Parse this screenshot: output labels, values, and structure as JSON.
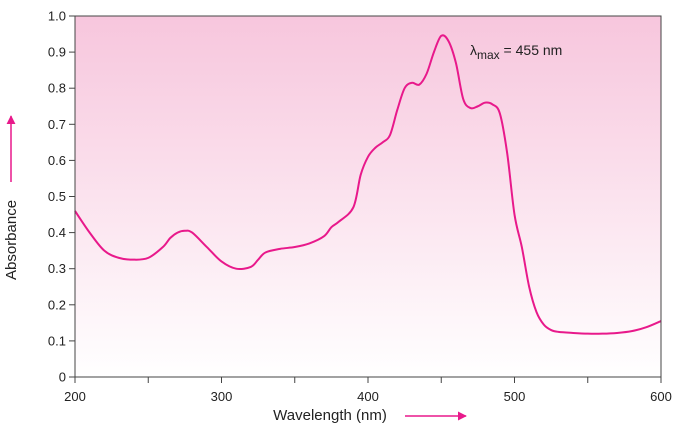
{
  "chart_data": {
    "type": "line",
    "title": "",
    "xlabel": "Wavelength (nm)",
    "ylabel": "Absorbance",
    "xlim": [
      200,
      600
    ],
    "ylim": [
      0,
      1.0
    ],
    "x_ticks": [
      "200",
      "300",
      "400",
      "500",
      "600"
    ],
    "y_ticks": [
      "0",
      "0.1",
      "0.2",
      "0.3",
      "0.4",
      "0.5",
      "0.6",
      "0.7",
      "0.8",
      "0.9",
      "1.0"
    ],
    "grid": false,
    "annotation": {
      "symbol": "λ",
      "subscript": "max",
      "text": " = 455 nm"
    },
    "colors": {
      "line": "#e8198b",
      "background_top": "#f7c6dd",
      "background_bottom": "#ffffff"
    },
    "series": [
      {
        "x": [
          200,
          210,
          220,
          230,
          240,
          250,
          260,
          265,
          270,
          275,
          280,
          290,
          300,
          310,
          320,
          325,
          330,
          340,
          350,
          360,
          370,
          375,
          380,
          390,
          395,
          400,
          405,
          410,
          415,
          420,
          425,
          430,
          435,
          440,
          445,
          450,
          455,
          460,
          465,
          470,
          475,
          480,
          485,
          490,
          495,
          500,
          505,
          510,
          515,
          520,
          525,
          530,
          540,
          550,
          560,
          570,
          580,
          590,
          600
        ],
        "y": [
          0.46,
          0.4,
          0.35,
          0.33,
          0.325,
          0.33,
          0.36,
          0.385,
          0.4,
          0.405,
          0.4,
          0.36,
          0.32,
          0.3,
          0.305,
          0.325,
          0.345,
          0.355,
          0.36,
          0.37,
          0.39,
          0.415,
          0.43,
          0.47,
          0.56,
          0.61,
          0.635,
          0.65,
          0.67,
          0.74,
          0.8,
          0.815,
          0.81,
          0.84,
          0.9,
          0.945,
          0.93,
          0.87,
          0.77,
          0.745,
          0.75,
          0.76,
          0.755,
          0.73,
          0.62,
          0.45,
          0.36,
          0.25,
          0.18,
          0.145,
          0.13,
          0.125,
          0.122,
          0.12,
          0.12,
          0.122,
          0.127,
          0.138,
          0.155
        ]
      }
    ]
  }
}
